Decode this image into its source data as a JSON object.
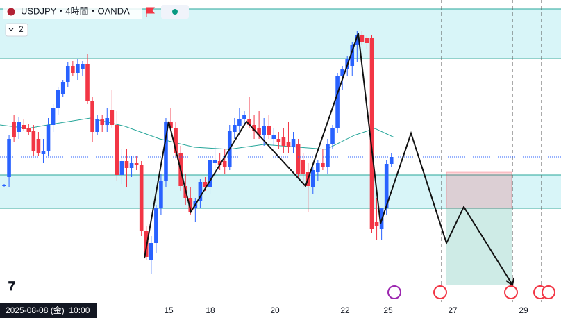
{
  "chart_data": {
    "type": "candlestick",
    "title": "USDJPY・4時間・OANDA",
    "indicator_count": "2",
    "crosshair_label": "2025-08-08 (金)  10:00",
    "x_axis_labels": [
      "15",
      "18",
      "20",
      "22",
      "25",
      "27",
      "29"
    ],
    "up_color": "#2962ff",
    "down_color": "#f23645",
    "ylim": [
      145.2,
      149.5
    ],
    "zones": [
      [
        149.37,
        148.66
      ],
      [
        146.98,
        146.5
      ]
    ],
    "open": [
      146.82,
      146.95,
      147.75,
      147.6,
      147.7,
      147.65,
      147.62,
      147.5,
      147.28,
      147.32,
      147.7,
      147.95,
      148.15,
      148.32,
      148.55,
      148.45,
      148.5,
      148.58,
      148.05,
      147.6,
      147.78,
      147.7,
      147.92,
      147.7,
      146.98,
      147.18,
      147.08,
      147.15,
      147.12,
      146.18,
      145.75,
      146.0,
      146.5,
      146.9,
      147.75,
      147.65,
      147.3,
      146.82,
      146.65,
      146.5,
      146.6,
      146.88,
      146.8,
      147.15,
      147.18,
      147.18,
      147.1,
      147.6,
      147.68,
      147.78,
      147.78,
      147.7,
      147.65,
      147.55,
      147.68,
      147.5,
      147.5,
      147.52,
      147.45,
      147.38,
      147.42,
      147.2,
      147.02,
      146.8,
      147.02,
      147.15,
      147.1,
      147.42,
      147.65,
      148.4,
      148.5,
      148.55,
      148.85,
      149.0,
      148.95,
      148.95,
      146.3,
      146.2,
      146.5,
      147.14
    ],
    "high": [
      146.85,
      147.55,
      147.85,
      147.82,
      147.78,
      147.72,
      147.7,
      147.6,
      147.5,
      147.8,
      148.0,
      148.25,
      148.35,
      148.6,
      148.62,
      148.65,
      148.62,
      148.72,
      148.1,
      147.85,
      147.85,
      147.95,
      148.2,
      147.9,
      147.35,
      147.35,
      147.25,
      147.25,
      147.18,
      146.25,
      146.1,
      146.55,
      147.0,
      147.8,
      147.95,
      147.75,
      147.4,
      147.0,
      146.8,
      146.65,
      146.92,
      146.95,
      147.25,
      147.4,
      147.3,
      147.35,
      147.7,
      147.8,
      147.95,
      147.9,
      148.1,
      147.85,
      147.9,
      147.8,
      147.85,
      147.65,
      147.6,
      147.65,
      147.75,
      147.6,
      147.5,
      147.3,
      147.15,
      147.1,
      147.2,
      147.35,
      147.5,
      147.7,
      148.45,
      148.55,
      148.7,
      148.9,
      149.05,
      149.05,
      149.0,
      149.0,
      146.65,
      146.5,
      147.2,
      147.3
    ],
    "low": [
      146.8,
      146.8,
      147.45,
      147.5,
      147.62,
      147.55,
      147.25,
      147.25,
      147.15,
      147.25,
      147.6,
      147.85,
      148.1,
      148.25,
      148.4,
      148.35,
      148.4,
      148.0,
      147.45,
      147.55,
      147.6,
      147.6,
      147.65,
      146.9,
      146.85,
      146.8,
      146.95,
      147.05,
      146.1,
      145.75,
      145.55,
      145.85,
      146.4,
      146.8,
      147.6,
      147.25,
      146.75,
      146.55,
      146.4,
      146.3,
      146.5,
      146.75,
      146.7,
      147.0,
      147.05,
      147.0,
      147.05,
      147.5,
      147.6,
      147.7,
      147.65,
      147.5,
      147.5,
      147.4,
      147.5,
      147.4,
      147.35,
      147.3,
      147.3,
      147.3,
      146.95,
      146.8,
      146.45,
      146.7,
      146.9,
      147.05,
      147.0,
      147.35,
      147.58,
      148.2,
      148.4,
      148.4,
      148.6,
      148.85,
      148.8,
      146.15,
      146.05,
      146.05,
      146.4,
      147.1
    ],
    "close": [
      146.83,
      147.5,
      147.52,
      147.75,
      147.64,
      147.6,
      147.32,
      147.3,
      147.32,
      147.7,
      147.95,
      148.2,
      148.32,
      148.55,
      148.45,
      148.58,
      148.58,
      148.05,
      147.6,
      147.78,
      147.7,
      147.8,
      147.7,
      146.98,
      147.18,
      147.08,
      147.15,
      147.12,
      146.18,
      145.8,
      146.0,
      146.5,
      146.9,
      147.75,
      147.65,
      147.3,
      146.82,
      146.65,
      146.45,
      146.6,
      146.88,
      146.8,
      147.2,
      147.2,
      147.12,
      147.1,
      147.62,
      147.7,
      147.78,
      147.85,
      147.7,
      147.62,
      147.55,
      147.68,
      147.55,
      147.55,
      147.45,
      147.4,
      147.38,
      147.5,
      147.0,
      147.0,
      146.82,
      147.05,
      147.15,
      147.1,
      147.42,
      147.65,
      148.4,
      148.5,
      148.65,
      148.85,
      149.0,
      148.9,
      148.88,
      146.2,
      146.25,
      146.5,
      147.14,
      147.24
    ]
  }
}
